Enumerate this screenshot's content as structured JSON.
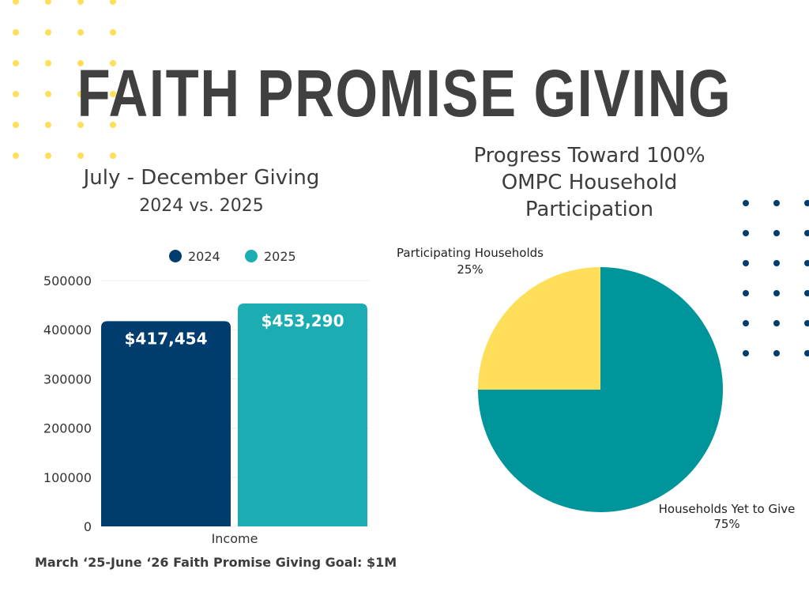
{
  "title": "FAITH PROMISE GIVING",
  "bar_chart_title": "July - December Giving",
  "bar_chart_subtitle": "2024 vs. 2025",
  "pie_chart_title_lines": [
    "Progress Toward 100%",
    "OMPC Household",
    "Participation"
  ],
  "goal_note": "March ‘25-June ‘26 Faith Promise Giving Goal: $1M",
  "colors": {
    "bar_2024": "#003d6e",
    "bar_2025": "#1badb2",
    "pie_participating": "#ffde59",
    "pie_yet": "#00959a",
    "dots_yellow": "#ffde59",
    "dots_navy": "#003d6e",
    "title": "#404040"
  },
  "chart_data": [
    {
      "type": "bar",
      "categories": [
        "Income"
      ],
      "series": [
        {
          "name": "2024",
          "values": [
            417454
          ],
          "label": "$417,454"
        },
        {
          "name": "2025",
          "values": [
            453290
          ],
          "label": "$453,290"
        }
      ],
      "title": "July - December Giving",
      "subtitle": "2024 vs. 2025",
      "xlabel": "Income",
      "ylabel": "",
      "ylim": [
        0,
        500000
      ],
      "yticks": [
        "0",
        "100000",
        "200000",
        "300000",
        "400000",
        "500000"
      ],
      "legend": "top"
    },
    {
      "type": "pie",
      "title": "Progress Toward 100% OMPC Household Participation",
      "slices": [
        {
          "name": "Participating Households",
          "value": 25,
          "label": "25%"
        },
        {
          "name": "Households Yet to Give",
          "value": 75,
          "label": "75%"
        }
      ]
    }
  ]
}
